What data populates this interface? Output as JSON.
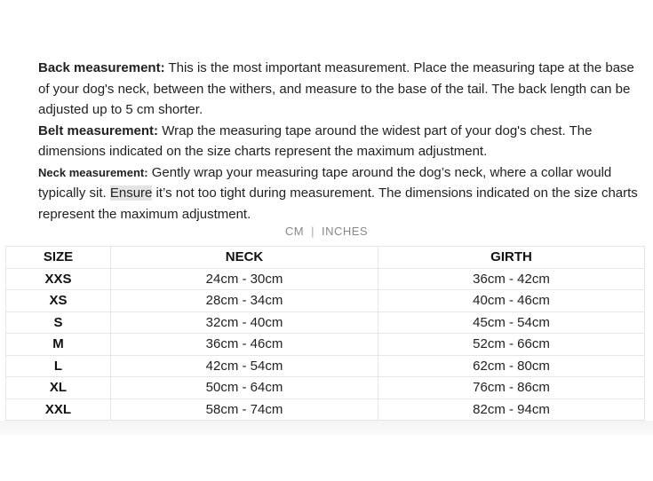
{
  "info": {
    "back_label": "Back measurement:",
    "back_text": " This is the most important measurement. Place the measuring tape at the base of your dog's neck, between the withers, and measure to the base of the tail. The back length can be adjusted up to 5 cm shorter.",
    "belt_label": "Belt measurement:",
    "belt_text": " Wrap the measuring tape around the widest part of your dog's chest. The dimensions indicated on the size charts represent the maximum adjustment.",
    "neck_label": "Neck measurement:",
    "neck_text_1": " Gently wrap your measuring tape around the dog’s neck, where a collar would typically sit. ",
    "neck_highlight": "Ensure",
    "neck_text_2": " it’s not too tight during measurement. The dimensions indicated on the size charts represent the maximum adjustment."
  },
  "units": {
    "cm": "CM",
    "separator": "|",
    "inches": "INCHES"
  },
  "table": {
    "headers": [
      "SIZE",
      "NECK",
      "GIRTH"
    ],
    "rows": [
      [
        "XXS",
        "24cm - 30cm",
        "36cm - 42cm"
      ],
      [
        "XS",
        "28cm - 34cm",
        "40cm - 46cm"
      ],
      [
        "S",
        "32cm - 40cm",
        "45cm - 54cm"
      ],
      [
        "M",
        "36cm - 46cm",
        "52cm - 66cm"
      ],
      [
        "L",
        "42cm - 54cm",
        "62cm - 80cm"
      ],
      [
        "XL",
        "50cm - 64cm",
        "76cm - 86cm"
      ],
      [
        "XXL",
        "58cm - 74cm",
        "82cm - 94cm"
      ]
    ]
  }
}
